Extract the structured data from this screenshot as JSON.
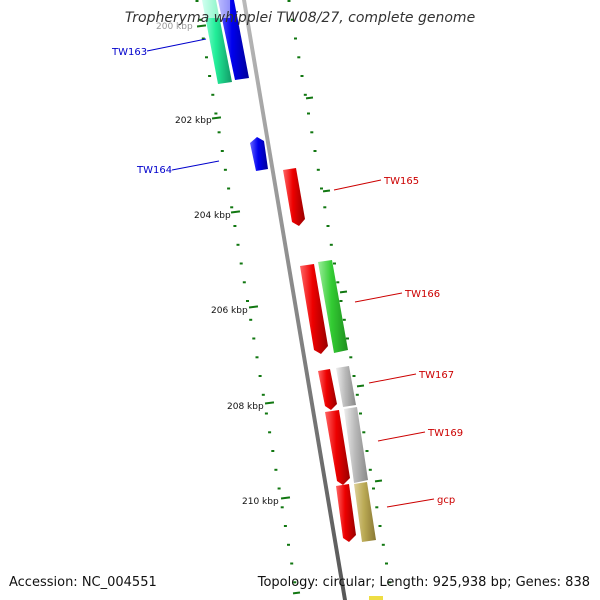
{
  "title": "Tropheryma whipplei TW08/27, complete genome",
  "accession": "Accession: NC_004551",
  "summary": "Topology: circular; Length: 925,938 bp; Genes: 838",
  "ticks": [
    {
      "label": "200 kbp"
    },
    {
      "label": "202 kbp"
    },
    {
      "label": "204 kbp"
    },
    {
      "label": "206 kbp"
    },
    {
      "label": "208 kbp"
    },
    {
      "label": "210 kbp"
    }
  ],
  "genes": [
    {
      "label": "TW163",
      "strand": "reverse",
      "color": "#0000ee"
    },
    {
      "label": "TW164",
      "strand": "reverse",
      "color": "#0000ee"
    },
    {
      "label": "TW165",
      "strand": "forward",
      "color": "#ee0000"
    },
    {
      "label": "TW166",
      "strand": "forward",
      "color": "#ee0000"
    },
    {
      "label": "TW167",
      "strand": "forward",
      "color": "#ee0000"
    },
    {
      "label": "TW169",
      "strand": "forward",
      "color": "#ee0000"
    },
    {
      "label": "gcp",
      "strand": "forward",
      "color": "#ee0000"
    }
  ],
  "colors": {
    "forward_cds": "#ee0000",
    "reverse_cds": "#0000ee",
    "backbone": "#888888",
    "tick": "#117711",
    "cog_green": "#33cc33",
    "cog_teal": "#22ee99",
    "cog_grey": "#bbbbbb",
    "cog_olive": "#bbaa55",
    "cog_yellow": "#eedd44"
  }
}
